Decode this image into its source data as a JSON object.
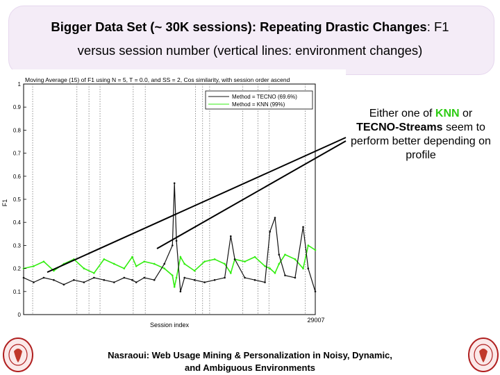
{
  "slide": {
    "title_line1_bold": "Bigger Data Set (~ 30K sessions): Repeating Drastic Changes",
    "title_line1_rest": ": F1",
    "title_line2": "versus session number (vertical lines: environment changes)",
    "callout": {
      "pre": "Either one of ",
      "knn": "KNN",
      "mid": " or",
      "tecno": "TECNO-Streams",
      "post": " seem to perform better depending on profile"
    },
    "footer_line1": "Nasraoui: Web Usage Mining & Personalization in Noisy, Dynamic,",
    "footer_line2": "and Ambiguous Environments"
  },
  "icons": {
    "left_seal": "university-seal-icon",
    "right_seal": "university-seal-icon"
  },
  "colors": {
    "tecno": "#111111",
    "knn": "#33ee11",
    "accent_banner": "#f4ecf7"
  },
  "chart_data": {
    "type": "line",
    "title": "Moving Average (15) of F1 using N = 5, T = 0.0, and SS = 2, Cos similarity, with session order ascend",
    "xlabel": "Session index",
    "ylabel": "F1",
    "ylim": [
      0,
      1
    ],
    "xlim": [
      0,
      29007
    ],
    "x_end_label": "29007",
    "yticks": [
      "0",
      "0.1",
      "0.2",
      "0.3",
      "0.4",
      "0.5",
      "0.6",
      "0.7",
      "0.8",
      "0.9",
      "1"
    ],
    "environment_changes": [
      900,
      5300,
      6500,
      7600,
      10900,
      12100,
      17100,
      17800,
      18500,
      21800,
      23300,
      24400,
      28000
    ],
    "legend_position": "top-right",
    "series": [
      {
        "name": "Method = TECNO (69.6%)",
        "x": [
          0,
          1000,
          2000,
          3000,
          4000,
          5000,
          6000,
          7000,
          8000,
          9000,
          10000,
          10800,
          11200,
          12000,
          13000,
          14000,
          14800,
          15000,
          15200,
          15600,
          16000,
          17000,
          18000,
          19000,
          20000,
          20600,
          21000,
          22000,
          23000,
          24000,
          24500,
          25000,
          25400,
          26000,
          27000,
          27800,
          28300,
          29007
        ],
        "y": [
          0.16,
          0.14,
          0.16,
          0.15,
          0.13,
          0.15,
          0.14,
          0.16,
          0.15,
          0.14,
          0.16,
          0.15,
          0.14,
          0.16,
          0.15,
          0.22,
          0.3,
          0.57,
          0.32,
          0.1,
          0.16,
          0.15,
          0.14,
          0.15,
          0.16,
          0.34,
          0.24,
          0.16,
          0.15,
          0.14,
          0.36,
          0.42,
          0.26,
          0.17,
          0.16,
          0.38,
          0.2,
          0.1
        ]
      },
      {
        "name": "Method = KNN (99%)",
        "x": [
          0,
          1000,
          2000,
          3000,
          4000,
          5000,
          6000,
          7000,
          8000,
          9000,
          10000,
          10800,
          11200,
          12000,
          13000,
          14000,
          14800,
          15000,
          15200,
          15600,
          16000,
          17000,
          18000,
          19000,
          20000,
          20600,
          21000,
          22000,
          23000,
          24000,
          24500,
          25000,
          25400,
          26000,
          27000,
          27800,
          28300,
          29007
        ],
        "y": [
          0.2,
          0.21,
          0.23,
          0.19,
          0.22,
          0.24,
          0.2,
          0.18,
          0.24,
          0.22,
          0.2,
          0.25,
          0.21,
          0.23,
          0.22,
          0.2,
          0.17,
          0.12,
          0.16,
          0.25,
          0.22,
          0.19,
          0.23,
          0.24,
          0.22,
          0.18,
          0.24,
          0.23,
          0.25,
          0.21,
          0.2,
          0.18,
          0.22,
          0.26,
          0.24,
          0.2,
          0.3,
          0.28
        ]
      }
    ]
  }
}
